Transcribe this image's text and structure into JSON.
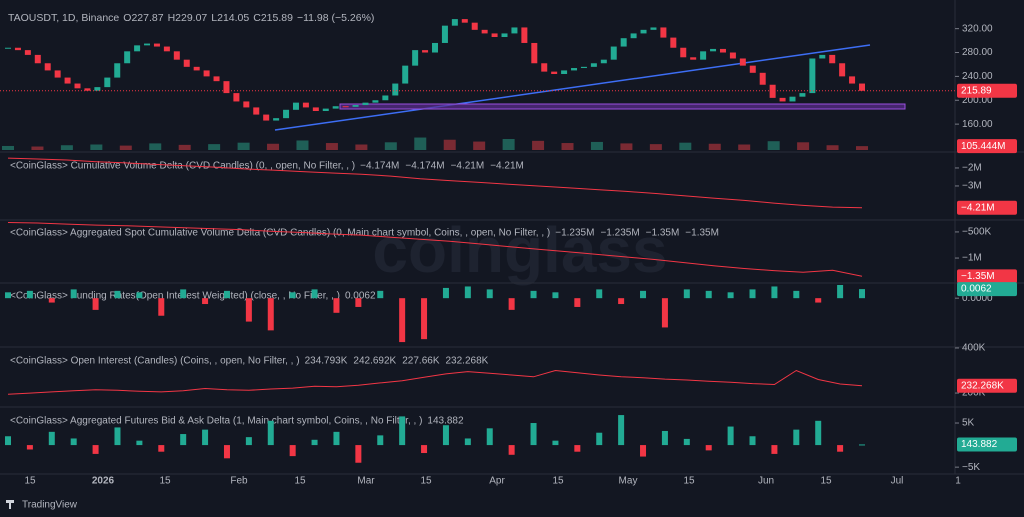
{
  "header": {
    "symbol": "TAOUSDT, 1D, Binance",
    "ohlc": [
      {
        "key": "O",
        "value": "227.87"
      },
      {
        "key": "H",
        "value": "229.07"
      },
      {
        "key": "L",
        "value": "214.05"
      },
      {
        "key": "C",
        "value": "215.89"
      }
    ],
    "change": "−11.98 (−5.26%)"
  },
  "watermark": "coinglass",
  "chart_data": [
    {
      "type": "candlestick",
      "up_color": "#22ab94",
      "down_color": "#f23645",
      "ylim": [
        120,
        368
      ],
      "yticks": [
        {
          "value": 160,
          "label": "160.00"
        },
        {
          "value": 200,
          "label": "200.00"
        },
        {
          "value": 240,
          "label": "240.00"
        },
        {
          "value": 280,
          "label": "280.00"
        },
        {
          "value": 320,
          "label": "320.00"
        }
      ],
      "last": {
        "value": 215.89,
        "label": "215.89"
      },
      "values": [
        288,
        284,
        276,
        262,
        250,
        238,
        228,
        220,
        216,
        222,
        238,
        262,
        282,
        292,
        295,
        290,
        282,
        268,
        256,
        250,
        240,
        232,
        212,
        198,
        188,
        176,
        166,
        170,
        184,
        196,
        188,
        182,
        186,
        190,
        189,
        192,
        196,
        200,
        208,
        228,
        258,
        284,
        280,
        296,
        325,
        336,
        330,
        318,
        312,
        306,
        312,
        322,
        296,
        262,
        248,
        244,
        250,
        254,
        256,
        262,
        268,
        290,
        304,
        312,
        318,
        322,
        305,
        288,
        272,
        268,
        282,
        286,
        280,
        270,
        258,
        246,
        226,
        204,
        198,
        206,
        212,
        270,
        276,
        262,
        240,
        228,
        215.89
      ]
    },
    {
      "type": "volume",
      "up_color": "#1f5f57",
      "down_color": "#7a2a33",
      "box_color": "#f23645",
      "ylim": [
        0,
        600000000
      ],
      "last": {
        "value": 105444000,
        "label": "105.444M"
      },
      "values": [
        110000000,
        95000000,
        130000000,
        150000000,
        120000000,
        180000000,
        140000000,
        160000000,
        200000000,
        170000000,
        260000000,
        190000000,
        150000000,
        210000000,
        340000000,
        280000000,
        230000000,
        300000000,
        250000000,
        190000000,
        220000000,
        180000000,
        160000000,
        200000000,
        170000000,
        150000000,
        240000000,
        210000000,
        130000000,
        105444000
      ]
    },
    {
      "type": "line",
      "color": "#f23645",
      "title": "<CoinGlass> Cumulative Volume Delta (CVD Candles) (0, , open, No Filter, , )",
      "title_values": [
        "−4.174M",
        "−4.174M",
        "−4.21M",
        "−4.21M"
      ],
      "ylim": [
        -4780000,
        -1280000
      ],
      "yticks": [
        {
          "value": -2000000,
          "label": "−2M"
        },
        {
          "value": -3000000,
          "label": "−3M"
        }
      ],
      "last": {
        "value": -4210000,
        "label": "−4.21M"
      },
      "values": [
        -1450000,
        -1500000,
        -1560000,
        -1650000,
        -1720000,
        -1800000,
        -1880000,
        -1950000,
        -2050000,
        -2120000,
        -2200000,
        -2280000,
        -2350000,
        -2450000,
        -2600000,
        -2700000,
        -2800000,
        -2900000,
        -3000000,
        -3100000,
        -3200000,
        -3300000,
        -3420000,
        -3550000,
        -3680000,
        -3800000,
        -3950000,
        -4080000,
        -4174000,
        -4210000
      ]
    },
    {
      "type": "line",
      "color": "#f23645",
      "title": "<CoinGlass> Aggregated Spot Cumulative Volume Delta (CVD Candles) (0, Main chart symbol, Coins, , open, No Filter, , )",
      "title_values": [
        "−1.235M",
        "−1.235M",
        "−1.35M",
        "−1.35M"
      ],
      "ylim": [
        -1420000,
        -310000
      ],
      "yticks": [
        {
          "value": -500000,
          "label": "−500K"
        },
        {
          "value": -1000000,
          "label": "−1M"
        }
      ],
      "last": {
        "value": -1350000,
        "label": "−1.35M"
      },
      "values": [
        -320000,
        -330000,
        -350000,
        -370000,
        -380000,
        -400000,
        -420000,
        -440000,
        -460000,
        -490000,
        -510000,
        -540000,
        -560000,
        -600000,
        -640000,
        -680000,
        -730000,
        -780000,
        -830000,
        -880000,
        -930000,
        -980000,
        -1030000,
        -1090000,
        -1150000,
        -1200000,
        -1240000,
        -1270000,
        -1235000,
        -1350000
      ]
    },
    {
      "type": "bar",
      "up_color": "#22ab94",
      "down_color": "#f23645",
      "title": "<CoinGlass> Funding Rates(Open Interest Weighted) (close, , No Filter, , )",
      "title_values": [
        "0.0062"
      ],
      "ylim": [
        -0.032,
        0.009
      ],
      "yticks": [
        {
          "value": 0,
          "label": "0.0000"
        }
      ],
      "last": {
        "value": 0.0062,
        "label": "0.0062"
      },
      "values": [
        0.004,
        0.005,
        -0.003,
        0.006,
        -0.008,
        0.005,
        0.004,
        -0.012,
        0.006,
        -0.004,
        0.005,
        -0.016,
        -0.022,
        0.004,
        0.006,
        -0.01,
        -0.006,
        0.005,
        -0.03,
        -0.028,
        0.007,
        0.008,
        0.006,
        -0.008,
        0.005,
        0.004,
        -0.006,
        0.006,
        -0.004,
        0.005,
        -0.02,
        0.006,
        0.005,
        0.004,
        0.006,
        0.008,
        0.005,
        -0.003,
        0.009,
        0.0062
      ]
    },
    {
      "type": "line",
      "color": "#f23645",
      "title": "<CoinGlass> Open Interest (Candles) (Coins, , open, No Filter, , )",
      "title_values": [
        "234.793K",
        "242.692K",
        "227.66K",
        "232.268K"
      ],
      "ylim": [
        147000,
        391000
      ],
      "yticks": [
        {
          "value": 200000,
          "label": "200K"
        },
        {
          "value": 400000,
          "label": "400K"
        }
      ],
      "last": {
        "value": 232268,
        "label": "232.268K"
      },
      "values": [
        195000,
        200000,
        205000,
        210000,
        215000,
        212000,
        208000,
        205000,
        210000,
        220000,
        215000,
        212000,
        218000,
        222000,
        230000,
        228000,
        235000,
        245000,
        255000,
        270000,
        285000,
        295000,
        288000,
        280000,
        272000,
        300000,
        290000,
        280000,
        272000,
        268000,
        262000,
        258000,
        252000,
        248000,
        242000,
        238000,
        300000,
        260000,
        240000,
        232268
      ]
    },
    {
      "type": "bar",
      "up_color": "#22ab94",
      "down_color": "#f23645",
      "title": "<CoinGlass> Aggregated Futures Bid & Ask Delta (1, Main chart symbol, Coins, , No Filter, , )",
      "title_values": [
        "143.882"
      ],
      "ylim": [
        -6100,
        7950
      ],
      "yticks": [
        {
          "value": -5000,
          "label": "−5K"
        },
        {
          "value": 5000,
          "label": "5K"
        }
      ],
      "last": {
        "value": 143.882,
        "label": "143.882"
      },
      "values": [
        2000,
        -1000,
        3000,
        1500,
        -2000,
        4000,
        1000,
        -1500,
        2500,
        3500,
        -3000,
        1800,
        5500,
        -2500,
        1200,
        3000,
        -4000,
        2200,
        6500,
        -1800,
        4500,
        1500,
        3800,
        -2200,
        5000,
        1000,
        -1500,
        2800,
        6800,
        -2600,
        3200,
        1400,
        -1200,
        4200,
        2000,
        -2000,
        3500,
        5500,
        -1500,
        143.882
      ]
    }
  ],
  "time_axis": [
    "15",
    "2026",
    "15",
    "Feb",
    "15",
    "Mar",
    "15",
    "Apr",
    "15",
    "May",
    "15",
    "Jun",
    "15",
    "Jul",
    "1"
  ],
  "footer": "TradingView"
}
